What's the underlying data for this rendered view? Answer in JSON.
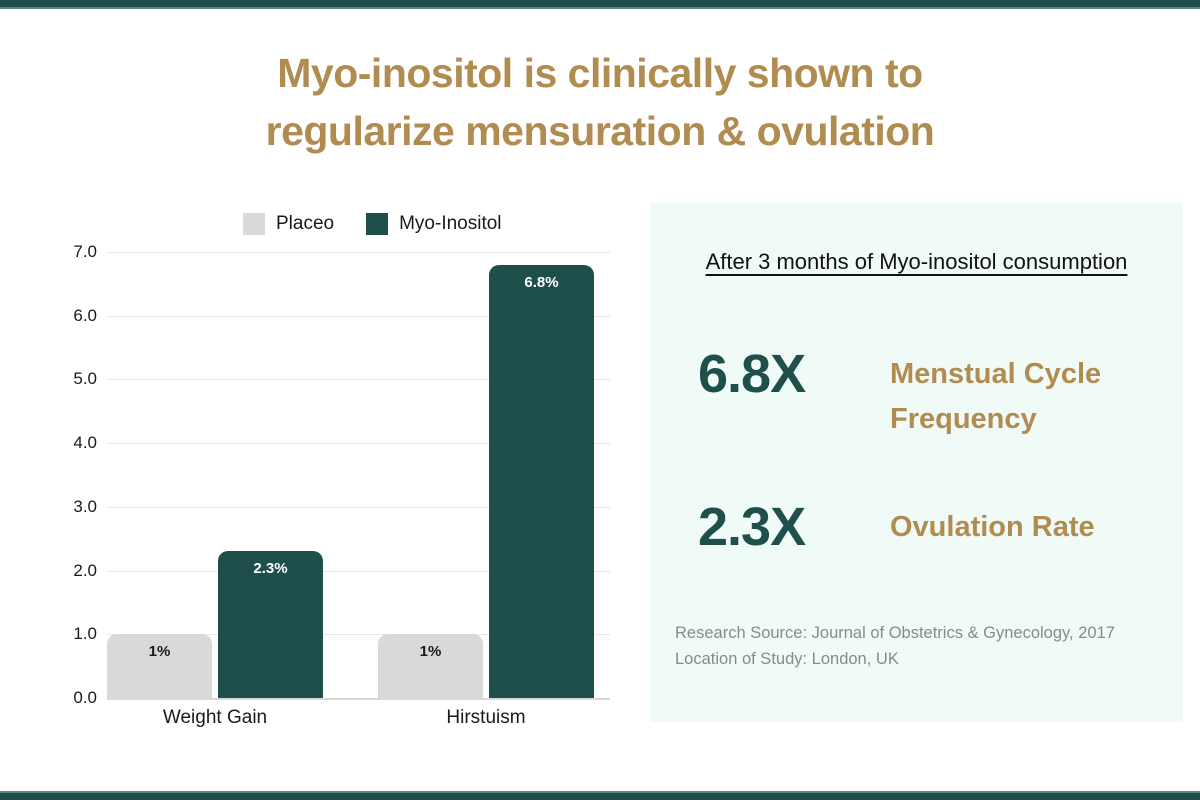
{
  "page": {
    "title_line1": "Myo-inositol is clinically shown to",
    "title_line2": "regularize mensuration & ovulation"
  },
  "colors": {
    "teal": "#1E4F4A",
    "gold": "#B18C51",
    "placebo_gray": "#D9D9D9",
    "panel_mint": "#F0FAF6",
    "strip_accent": "#5E8680",
    "gridline": "#e7e7e7",
    "source_gray": "#8a8a8a"
  },
  "chart_data": {
    "type": "bar",
    "title": "",
    "categories": [
      "Weight Gain",
      "Hirstuism"
    ],
    "series": [
      {
        "name": "Placeo",
        "color": "#D9D9D9",
        "values": [
          1,
          1
        ],
        "value_labels": [
          "1%",
          "1%"
        ],
        "label_color": "#1a1a1a"
      },
      {
        "name": "Myo-Inositol",
        "color": "#1E4F4A",
        "values": [
          2.3,
          6.8
        ],
        "value_labels": [
          "2.3%",
          "6.8%"
        ],
        "label_color": "#ffffff"
      }
    ],
    "xlabel": "",
    "ylabel": "",
    "ylim": [
      0,
      7
    ],
    "ytick_step": 1,
    "ytick_labels": [
      "0.0",
      "1.0",
      "2.0",
      "3.0",
      "4.0",
      "5.0",
      "6.0",
      "7.0"
    ],
    "grid": true,
    "legend_position": "top-left"
  },
  "panel": {
    "heading": "After 3 months of Myo-inositol consumption",
    "stats": [
      {
        "value": "6.8X",
        "label": "Menstual Cycle Frequency"
      },
      {
        "value": "2.3X",
        "label": "Ovulation Rate"
      }
    ],
    "source_line1": "Research Source: Journal of Obstetrics & Gynecology, 2017",
    "source_line2": "Location of Study: London, UK"
  }
}
